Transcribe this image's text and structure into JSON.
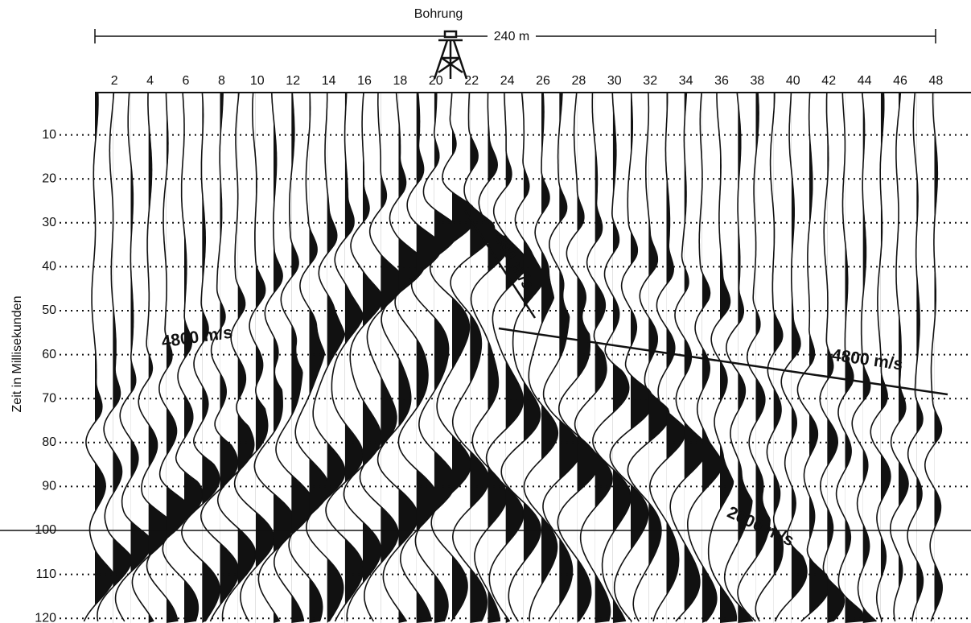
{
  "header": {
    "title": "Bohrung",
    "distance": "240 m"
  },
  "axis": {
    "label": "Zeit in Millisekunden",
    "ticks": [
      10,
      20,
      30,
      40,
      50,
      60,
      70,
      80,
      90,
      100,
      110,
      120
    ]
  },
  "traces": {
    "labels": [
      2,
      4,
      6,
      8,
      10,
      12,
      14,
      16,
      18,
      20,
      22,
      24,
      26,
      28,
      30,
      32,
      34,
      36,
      38,
      40,
      42,
      44,
      46,
      48
    ]
  },
  "annotations": {
    "velocity_left": "4800 m/s",
    "velocity_direct": "400 m/s",
    "velocity_right": "4800 m/s",
    "velocity_surface": "2000 m/s"
  }
}
